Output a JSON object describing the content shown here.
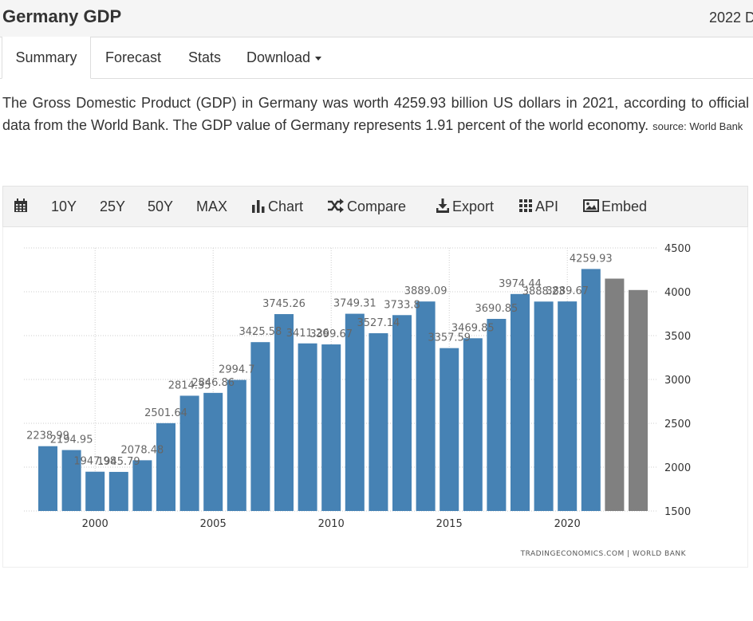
{
  "header": {
    "title": "Germany GDP",
    "year_label": "2022 D"
  },
  "tabs": [
    {
      "label": "Summary",
      "active": true
    },
    {
      "label": "Forecast",
      "active": false
    },
    {
      "label": "Stats",
      "active": false
    },
    {
      "label": "Download",
      "active": false,
      "dropdown": true
    }
  ],
  "description": {
    "text": "The Gross Domestic Product (GDP) in Germany was worth 4259.93 billion US dollars in 2021, according to official data from the World Bank. The GDP value of Germany represents 1.91 percent of the world economy.",
    "source": "source: World Bank"
  },
  "toolbar": {
    "calendar_icon": "calendar-icon",
    "ranges": [
      "10Y",
      "25Y",
      "50Y",
      "MAX"
    ],
    "chart_label": "Chart",
    "compare_label": "Compare",
    "export_label": "Export",
    "api_label": "API",
    "embed_label": "Embed"
  },
  "chart_data": {
    "type": "bar",
    "title": "",
    "xlabel": "",
    "ylabel": "",
    "x": [
      1998,
      1999,
      2000,
      2001,
      2002,
      2003,
      2004,
      2005,
      2006,
      2007,
      2008,
      2009,
      2010,
      2011,
      2012,
      2013,
      2014,
      2015,
      2016,
      2017,
      2018,
      2019,
      2020,
      2021,
      2022,
      2023
    ],
    "series": [
      {
        "values": [
          2238.99,
          2194.95,
          1947.98,
          1945.79,
          2078.48,
          2501.64,
          2814.35,
          2846.86,
          2994.7,
          3425.58,
          3745.26,
          3411.26,
          3399.67,
          3749.31,
          3527.14,
          3733.8,
          3889.09,
          3357.59,
          3469.85,
          3690.85,
          3974.44,
          3888.23,
          3889.67,
          4259.93,
          4150,
          4020
        ],
        "labels": [
          "2238.99",
          "2194.95",
          "1947.98",
          "1945.79",
          "2078.48",
          "2501.64",
          "2814.35",
          "2846.86",
          "2994.7",
          "3425.58",
          "3745.26",
          "3411.26",
          "3399.67",
          "3749.31",
          "3527.14",
          "3733.8",
          "3889.09",
          "3357.59",
          "3469.85",
          "3690.85",
          "3974.44",
          "3888.23",
          "3889.67",
          "4259.93",
          "",
          ""
        ],
        "forecast": [
          false,
          false,
          false,
          false,
          false,
          false,
          false,
          false,
          false,
          false,
          false,
          false,
          false,
          false,
          false,
          false,
          false,
          false,
          false,
          false,
          false,
          false,
          false,
          false,
          true,
          true
        ]
      }
    ],
    "xticks": [
      "2000",
      "2005",
      "2010",
      "2015",
      "2020"
    ],
    "xtick_years": [
      2000,
      2005,
      2010,
      2015,
      2020
    ],
    "yticks": [
      "4500",
      "4000",
      "3500",
      "3000",
      "2500",
      "2000",
      "1500"
    ],
    "ylim": [
      1500,
      4500
    ],
    "grid": true,
    "y_axis_side": "right",
    "colors": {
      "actual": "#4682b4",
      "forecast": "#808080"
    },
    "credit": "TRADINGECONOMICS.COM | WORLD BANK"
  }
}
